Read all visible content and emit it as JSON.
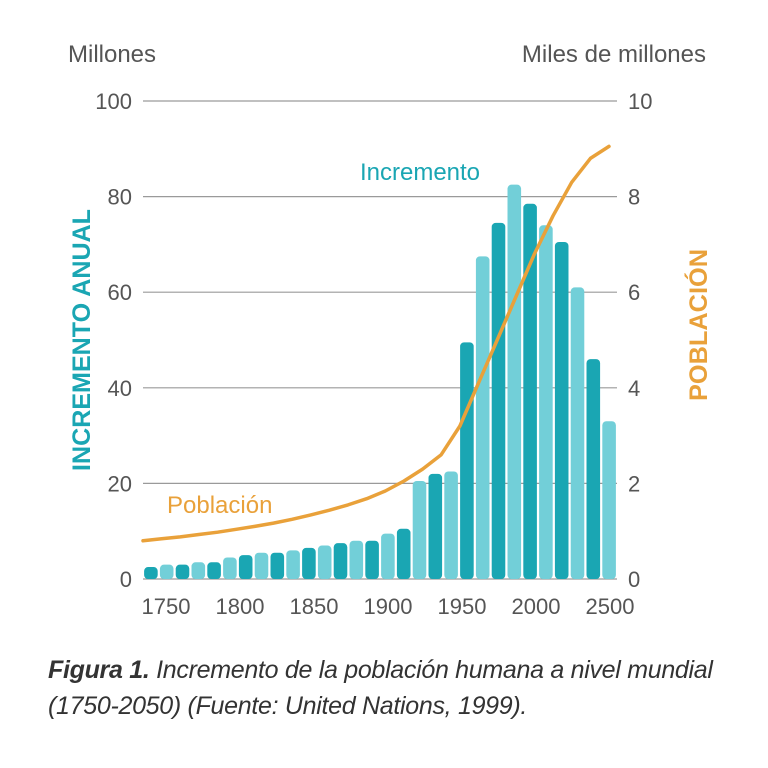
{
  "chart_data": {
    "type": "bar",
    "left_axis_unit": "Millones",
    "right_axis_unit": "Miles de millones",
    "ylabel": "INCREMENTO ANUAL",
    "y2label": "POBLACIÓN",
    "ylim": [
      0,
      100
    ],
    "y2lim": [
      0,
      10
    ],
    "y_ticks": [
      "0",
      "20",
      "40",
      "60",
      "80",
      "100"
    ],
    "y2_ticks": [
      "0",
      "2",
      "4",
      "6",
      "8",
      "10"
    ],
    "x_ticks": [
      "1750",
      "1800",
      "1850",
      "1900",
      "1950",
      "2000",
      "2500"
    ],
    "grid": true,
    "bar_series_label": "Incremento",
    "line_series_label": "Población",
    "bar_values": [
      2.5,
      3,
      3,
      3.5,
      3.5,
      4.5,
      5,
      5.5,
      5.5,
      6,
      6.5,
      7,
      7.5,
      8,
      8,
      9.5,
      10.5,
      20.5,
      22,
      22.5,
      49.5,
      67.5,
      74.5,
      82.5,
      78.5,
      74,
      70.5,
      61,
      46,
      33
    ],
    "line_values": [
      0.8,
      0.84,
      0.88,
      0.93,
      0.98,
      1.04,
      1.1,
      1.17,
      1.25,
      1.34,
      1.44,
      1.55,
      1.68,
      1.84,
      2.05,
      2.3,
      2.6,
      3.2,
      4.1,
      5.0,
      5.9,
      6.8,
      7.6,
      8.3,
      8.8,
      9.05
    ]
  },
  "caption": {
    "figure": "Figura 1.",
    "text": " Incremento de la población humana a nivel mundial (1750-2050) (Fuente: United Nations, 1999)."
  },
  "colors": {
    "bar_dark": "#1aa6b3",
    "bar_light": "#72cfd8",
    "line": "#e9a13a",
    "axis_text": "#555555",
    "grid": "#9a9a9a"
  }
}
